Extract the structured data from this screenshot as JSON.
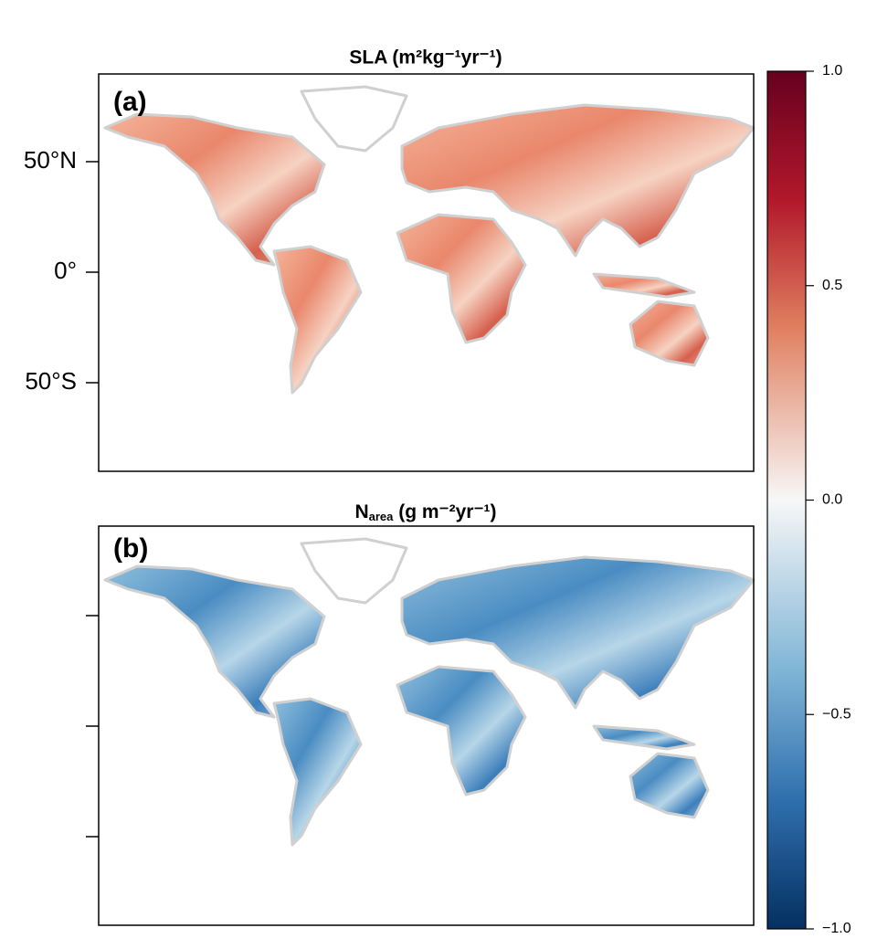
{
  "maps": [
    {
      "title": "SLA (m²kg⁻¹yr⁻¹)",
      "panel": "(a)"
    },
    {
      "title": {
        "main": "N",
        "sub": "area",
        "rest": " (g m⁻²yr⁻¹)"
      },
      "panel": "(b)"
    }
  ],
  "lat_ticks": [
    {
      "value": 50,
      "label": "50°N"
    },
    {
      "value": 0,
      "label": "0°"
    },
    {
      "value": -50,
      "label": "50°S"
    }
  ],
  "colorbar": {
    "lim": [
      -1,
      1
    ],
    "ticks": [
      {
        "value": 1,
        "label": "1.0"
      },
      {
        "value": 0.5,
        "label": "0.5"
      },
      {
        "value": 0,
        "label": "0.0"
      },
      {
        "value": -0.5,
        "label": "−0.5"
      },
      {
        "value": -1,
        "label": "−1.0"
      }
    ]
  }
}
